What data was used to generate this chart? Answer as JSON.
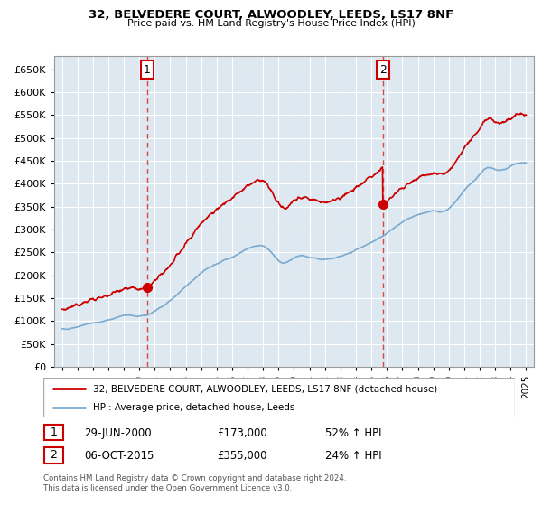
{
  "title": "32, BELVEDERE COURT, ALWOODLEY, LEEDS, LS17 8NF",
  "subtitle": "Price paid vs. HM Land Registry's House Price Index (HPI)",
  "legend_line1": "32, BELVEDERE COURT, ALWOODLEY, LEEDS, LS17 8NF (detached house)",
  "legend_line2": "HPI: Average price, detached house, Leeds",
  "footnote": "Contains HM Land Registry data © Crown copyright and database right 2024.\nThis data is licensed under the Open Government Licence v3.0.",
  "sale1_label": "1",
  "sale1_date": "29-JUN-2000",
  "sale1_price": "£173,000",
  "sale1_hpi": "52% ↑ HPI",
  "sale2_label": "2",
  "sale2_date": "06-OCT-2015",
  "sale2_price": "£355,000",
  "sale2_hpi": "24% ↑ HPI",
  "sale1_year": 2000.5,
  "sale1_value": 173000,
  "sale2_year": 2015.75,
  "sale2_value": 355000,
  "hpi_color": "#7aaad0",
  "sale_color": "#cc0000",
  "vline_color": "#dd4444",
  "grid_color": "#cccccc",
  "chart_bg": "#dde8f0",
  "background_color": "#ffffff",
  "ylim": [
    0,
    680000
  ],
  "yticks": [
    0,
    50000,
    100000,
    150000,
    200000,
    250000,
    300000,
    350000,
    400000,
    450000,
    500000,
    550000,
    600000,
    650000
  ],
  "xlim_start": 1994.5,
  "xlim_end": 2025.5
}
